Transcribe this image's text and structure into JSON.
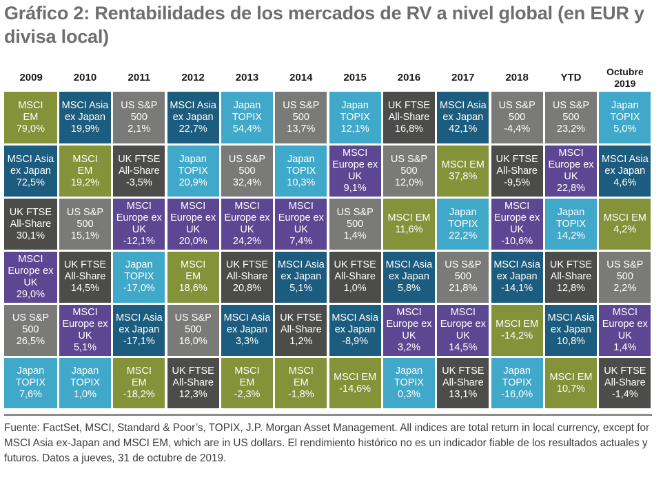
{
  "title": "Gráfico 2: Rentabilidades de los mercados de RV a nivel global (en EUR y divisa local)",
  "colors": {
    "MSCI EM": "#84923a",
    "MSCI Asia ex Japan": "#1c5c7e",
    "US S&P 500": "#7a7b78",
    "Japan TOPIX": "#40a8c9",
    "UK FTSE All-Share": "#4c4d4a",
    "MSCI Europe ex UK": "#5e4792"
  },
  "chart_data": {
    "type": "table",
    "title": "Gráfico 2: Rentabilidades de los mercados de RV a nivel global (en EUR y divisa local)",
    "columns": [
      "2009",
      "2010",
      "2011",
      "2012",
      "2013",
      "2014",
      "2015",
      "2016",
      "2017",
      "2018",
      "YTD",
      "Octubre 2019"
    ],
    "legend": [
      "MSCI EM",
      "MSCI Asia ex Japan",
      "US S&P 500",
      "Japan TOPIX",
      "UK FTSE All-Share",
      "MSCI Europe ex UK"
    ],
    "rank_order": "descending by return within each column",
    "cells": [
      [
        {
          "index": "MSCI EM",
          "label": "MSCI\nEM",
          "value": "79,0%"
        },
        {
          "index": "MSCI Asia ex Japan",
          "label": "MSCI Asia\nex Japan",
          "value": "72,5%"
        },
        {
          "index": "UK FTSE All-Share",
          "label": "UK FTSE\nAll-Share",
          "value": "30,1%"
        },
        {
          "index": "MSCI Europe ex UK",
          "label": "MSCI\nEurope ex\nUK",
          "value": "29,0%"
        },
        {
          "index": "US S&P 500",
          "label": "US S&P\n500",
          "value": "26,5%"
        },
        {
          "index": "Japan TOPIX",
          "label": "Japan\nTOPIX",
          "value": "7,6%"
        }
      ],
      [
        {
          "index": "MSCI Asia ex Japan",
          "label": "MSCI Asia\nex Japan",
          "value": "19,9%"
        },
        {
          "index": "MSCI EM",
          "label": "MSCI\nEM",
          "value": "19,2%"
        },
        {
          "index": "US S&P 500",
          "label": "US S&P\n500",
          "value": "15,1%"
        },
        {
          "index": "UK FTSE All-Share",
          "label": "UK FTSE\nAll-Share",
          "value": "14,5%"
        },
        {
          "index": "MSCI Europe ex UK",
          "label": "MSCI\nEurope ex\nUK",
          "value": "5,1%"
        },
        {
          "index": "Japan TOPIX",
          "label": "Japan\nTOPIX",
          "value": "1,0%"
        }
      ],
      [
        {
          "index": "US S&P 500",
          "label": "US S&P\n500",
          "value": "2,1%"
        },
        {
          "index": "UK FTSE All-Share",
          "label": "UK FTSE\nAll-Share",
          "value": "-3,5%"
        },
        {
          "index": "MSCI Europe ex UK",
          "label": "MSCI\nEurope ex\nUK",
          "value": "-12,1%"
        },
        {
          "index": "Japan TOPIX",
          "label": "Japan\nTOPIX",
          "value": "-17,0%"
        },
        {
          "index": "MSCI Asia ex Japan",
          "label": "MSCI Asia\nex Japan",
          "value": "-17,1%"
        },
        {
          "index": "MSCI EM",
          "label": "MSCI\nEM",
          "value": "-18,2%"
        }
      ],
      [
        {
          "index": "MSCI Asia ex Japan",
          "label": "MSCI Asia\nex Japan",
          "value": "22,7%"
        },
        {
          "index": "Japan TOPIX",
          "label": "Japan\nTOPIX",
          "value": "20,9%"
        },
        {
          "index": "MSCI Europe ex UK",
          "label": "MSCI\nEurope ex\nUK",
          "value": "20,0%"
        },
        {
          "index": "MSCI EM",
          "label": "MSCI\nEM",
          "value": "18,6%"
        },
        {
          "index": "US S&P 500",
          "label": "US S&P\n500",
          "value": "16,0%"
        },
        {
          "index": "UK FTSE All-Share",
          "label": "UK FTSE\nAll-Share",
          "value": "12,3%"
        }
      ],
      [
        {
          "index": "Japan TOPIX",
          "label": "Japan\nTOPIX",
          "value": "54,4%"
        },
        {
          "index": "US S&P 500",
          "label": "US S&P\n500",
          "value": "32,4%"
        },
        {
          "index": "MSCI Europe ex UK",
          "label": "MSCI\nEurope ex\nUK",
          "value": "24,2%"
        },
        {
          "index": "UK FTSE All-Share",
          "label": "UK FTSE\nAll-Share",
          "value": "20,8%"
        },
        {
          "index": "MSCI Asia ex Japan",
          "label": "MSCI Asia\nex Japan",
          "value": "3,3%"
        },
        {
          "index": "MSCI EM",
          "label": "MSCI\nEM",
          "value": "-2,3%"
        }
      ],
      [
        {
          "index": "US S&P 500",
          "label": "US S&P\n500",
          "value": "13,7%"
        },
        {
          "index": "Japan TOPIX",
          "label": "Japan\nTOPIX",
          "value": "10,3%"
        },
        {
          "index": "MSCI Europe ex UK",
          "label": "MSCI\nEurope ex\nUK",
          "value": "7,4%"
        },
        {
          "index": "MSCI Asia ex Japan",
          "label": "MSCI Asia\nex Japan",
          "value": "5,1%"
        },
        {
          "index": "UK FTSE All-Share",
          "label": "UK FTSE\nAll-Share",
          "value": "1,2%"
        },
        {
          "index": "MSCI EM",
          "label": "MSCI\nEM",
          "value": "-1,8%"
        }
      ],
      [
        {
          "index": "Japan TOPIX",
          "label": "Japan\nTOPIX",
          "value": "12,1%"
        },
        {
          "index": "MSCI Europe ex UK",
          "label": "MSCI\nEurope ex\nUK",
          "value": "9,1%"
        },
        {
          "index": "US S&P 500",
          "label": "US S&P\n500",
          "value": "1,4%"
        },
        {
          "index": "UK FTSE All-Share",
          "label": "UK FTSE\nAll-Share",
          "value": "1,0%"
        },
        {
          "index": "MSCI Asia ex Japan",
          "label": "MSCI Asia\nex Japan",
          "value": "-8,9%"
        },
        {
          "index": "MSCI EM",
          "label": "MSCI EM",
          "value": "-14,6%"
        }
      ],
      [
        {
          "index": "UK FTSE All-Share",
          "label": "UK FTSE\nAll-Share",
          "value": "16,8%"
        },
        {
          "index": "US S&P 500",
          "label": "US S&P\n500",
          "value": "12,0%"
        },
        {
          "index": "MSCI EM",
          "label": "MSCI EM",
          "value": "11,6%"
        },
        {
          "index": "MSCI Asia ex Japan",
          "label": "MSCI Asia\nex Japan",
          "value": "5,8%"
        },
        {
          "index": "MSCI Europe ex UK",
          "label": "MSCI\nEurope ex\nUK",
          "value": "3,2%"
        },
        {
          "index": "Japan TOPIX",
          "label": "Japan\nTOPIX",
          "value": "0,3%"
        }
      ],
      [
        {
          "index": "MSCI Asia ex Japan",
          "label": "MSCI Asia\nex Japan",
          "value": "42,1%"
        },
        {
          "index": "MSCI EM",
          "label": "MSCI EM",
          "value": "37,8%"
        },
        {
          "index": "Japan TOPIX",
          "label": "Japan\nTOPIX",
          "value": "22,2%"
        },
        {
          "index": "US S&P 500",
          "label": "US S&P\n500",
          "value": "21,8%"
        },
        {
          "index": "MSCI Europe ex UK",
          "label": "MSCI\nEurope ex\nUK",
          "value": "14,5%"
        },
        {
          "index": "UK FTSE All-Share",
          "label": "UK FTSE\nAll-Share",
          "value": "13,1%"
        }
      ],
      [
        {
          "index": "US S&P 500",
          "label": "US S&P\n500",
          "value": "-4,4%"
        },
        {
          "index": "UK FTSE All-Share",
          "label": "UK FTSE\nAll-Share",
          "value": "-9,5%"
        },
        {
          "index": "MSCI Europe ex UK",
          "label": "MSCI\nEurope ex\nUK",
          "value": "-10,6%"
        },
        {
          "index": "MSCI Asia ex Japan",
          "label": "MSCI Asia\nex Japan",
          "value": "-14,1%"
        },
        {
          "index": "MSCI EM",
          "label": "MSCI EM",
          "value": "-14,2%"
        },
        {
          "index": "Japan TOPIX",
          "label": "Japan\nTOPIX",
          "value": "-16,0%"
        }
      ],
      [
        {
          "index": "US S&P 500",
          "label": "US S&P\n500",
          "value": "23,2%"
        },
        {
          "index": "MSCI Europe ex UK",
          "label": "MSCI\nEurope ex\nUK",
          "value": "22,8%"
        },
        {
          "index": "Japan TOPIX",
          "label": "Japan\nTOPIX",
          "value": "14,2%"
        },
        {
          "index": "UK FTSE All-Share",
          "label": "UK FTSE\nAll-Share",
          "value": "12,8%"
        },
        {
          "index": "MSCI Asia ex Japan",
          "label": "MSCI Asia\nex Japan",
          "value": "10,8%"
        },
        {
          "index": "MSCI EM",
          "label": "MSCI EM",
          "value": "10,7%"
        }
      ],
      [
        {
          "index": "Japan TOPIX",
          "label": "Japan\nTOPIX",
          "value": "5,0%"
        },
        {
          "index": "MSCI Asia ex Japan",
          "label": "MSCI Asia\nex Japan",
          "value": "4,6%"
        },
        {
          "index": "MSCI EM",
          "label": "MSCI EM",
          "value": "4,2%"
        },
        {
          "index": "US S&P 500",
          "label": "US S&P\n500",
          "value": "2,2%"
        },
        {
          "index": "MSCI Europe ex UK",
          "label": "MSCI\nEurope ex\nUK",
          "value": "1,4%"
        },
        {
          "index": "UK FTSE All-Share",
          "label": "UK FTSE\nAll-Share",
          "value": "-1,4%"
        }
      ]
    ]
  },
  "footnote": "Fuente: FactSet, MSCI, Standard & Poor’s, TOPIX, J.P. Morgan Asset Management. All indices are total return in local currency, except for MSCI Asia ex-Japan and MSCI EM, which are in US dollars. El rendimiento histórico no es un indicador fiable de los resultados actuales y futuros. Datos a jueves, 31 de octubre de 2019."
}
